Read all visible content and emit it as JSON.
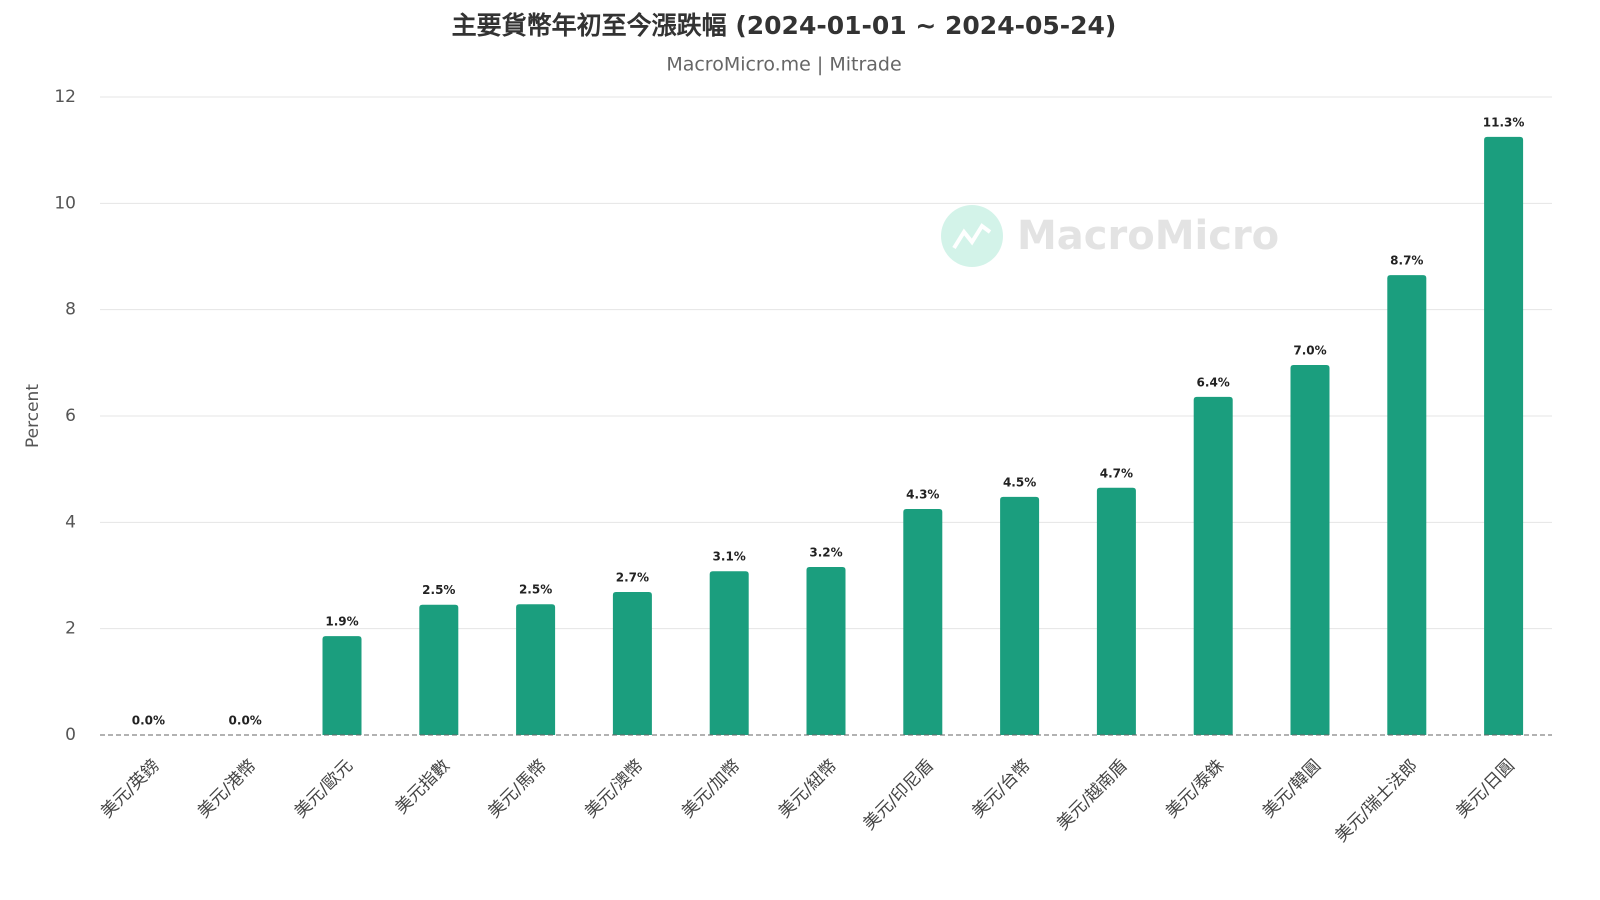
{
  "chart_data": {
    "type": "bar",
    "title": "主要貨幣年初至今漲跌幅 (2024-01-01 ~ 2024-05-24)",
    "subtitle": "MacroMicro.me | Mitrade",
    "watermark": "MacroMicro",
    "y_label": "Percent",
    "categories": [
      "美元/英鎊",
      "美元/港幣",
      "美元/歐元",
      "美元指數",
      "美元/馬幣",
      "美元/澳幣",
      "美元/加幣",
      "美元/紐幣",
      "美元/印尼盾",
      "美元/台幣",
      "美元/越南盾",
      "美元/泰銖",
      "美元/韓圓",
      "美元/瑞士法郎",
      "美元/日圓"
    ],
    "values": [
      0.0,
      0.0,
      1.86,
      2.45,
      2.46,
      2.69,
      3.08,
      3.16,
      4.25,
      4.48,
      4.65,
      6.36,
      6.96,
      8.65,
      11.25
    ],
    "value_labels": [
      "0.0%",
      "0.0%",
      "1.9%",
      "2.5%",
      "2.5%",
      "2.7%",
      "3.1%",
      "3.2%",
      "4.3%",
      "4.5%",
      "4.7%",
      "6.4%",
      "7.0%",
      "8.7%",
      "11.3%"
    ],
    "color": "#1b9e7e",
    "ylim": [
      0,
      12
    ],
    "yticks": [
      0,
      2,
      4,
      6,
      8,
      10,
      12
    ],
    "grid": true
  }
}
